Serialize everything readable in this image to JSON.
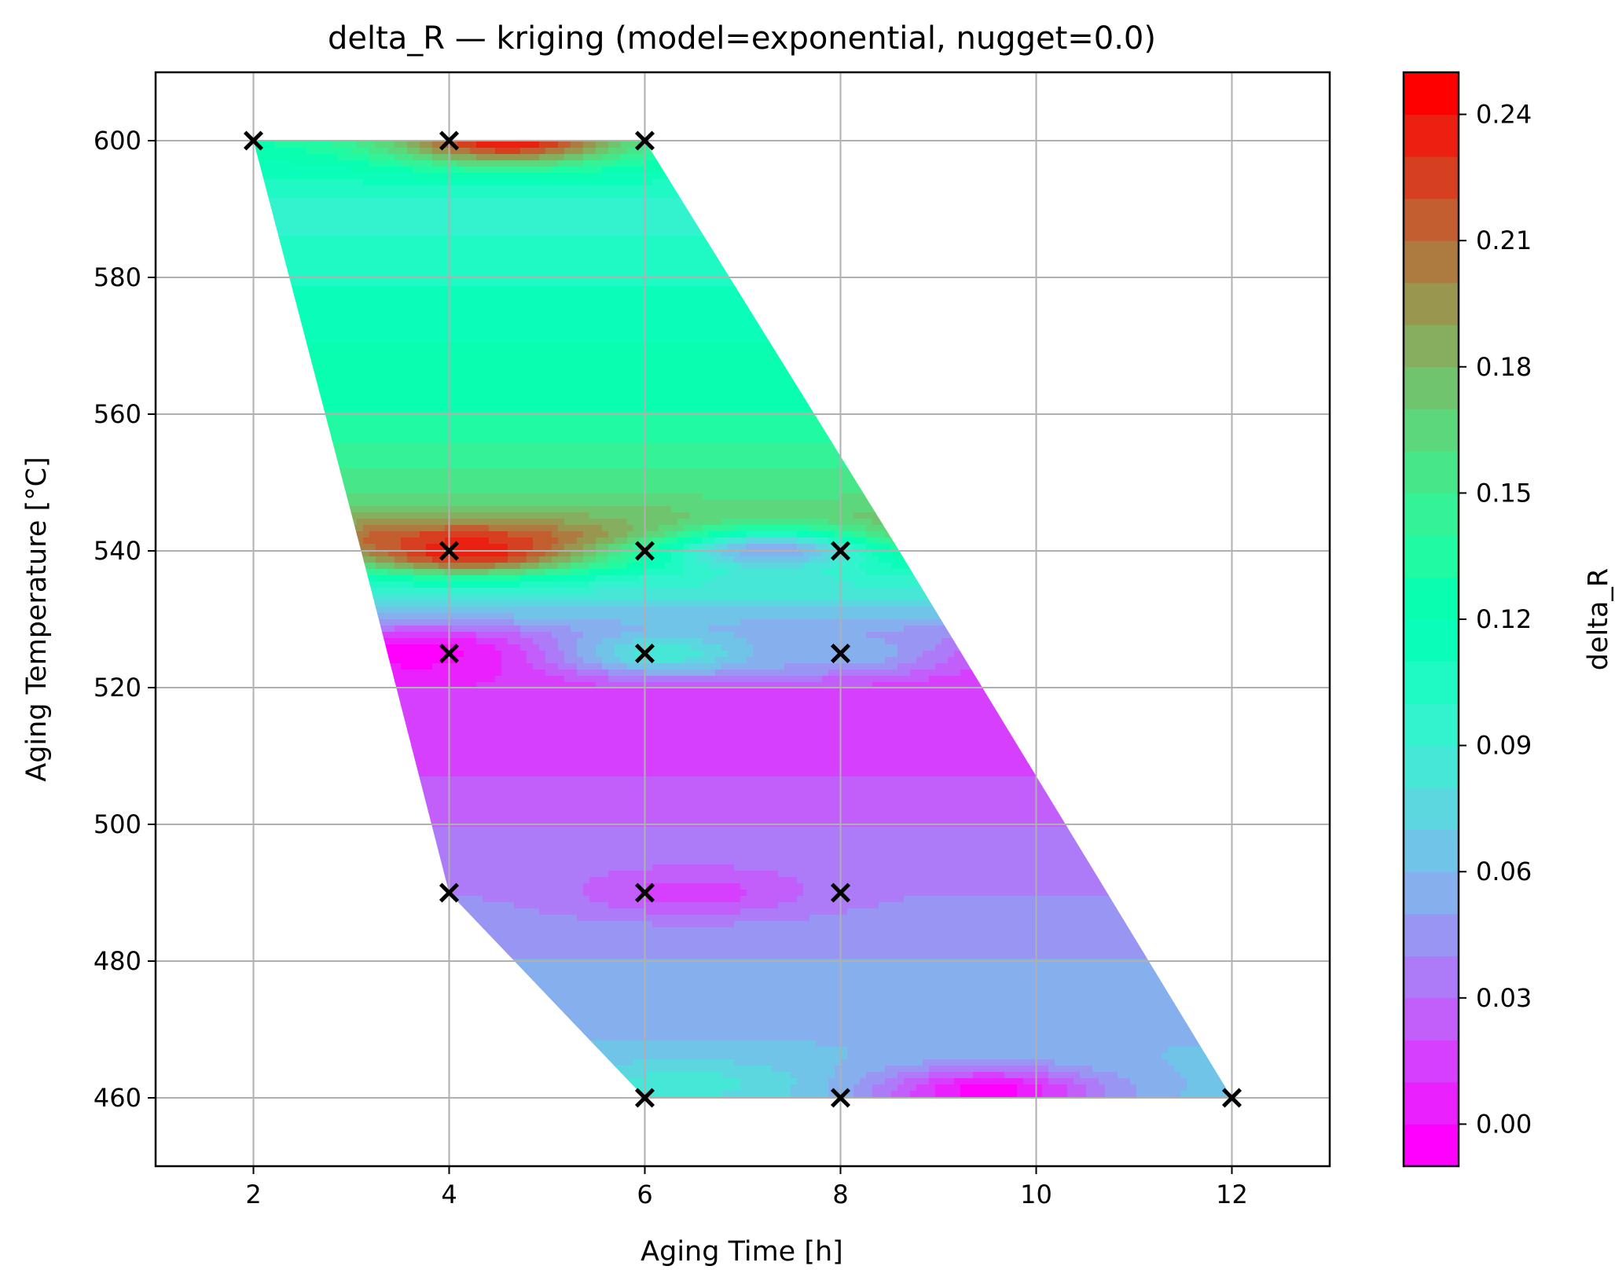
{
  "chart_data": {
    "type": "heatmap",
    "title": "delta_R — kriging (model=exponential, nugget=0.0)",
    "xlabel": "Aging Time [h]",
    "ylabel": "Aging Temperature [°C]",
    "xlim": [
      1,
      13
    ],
    "ylim": [
      450,
      610
    ],
    "x_ticks": [
      2,
      4,
      6,
      8,
      10,
      12
    ],
    "y_ticks": [
      460,
      480,
      500,
      520,
      540,
      560,
      580,
      600
    ],
    "grid": true,
    "colormap": "rainbow",
    "colorbar": {
      "label": "delta_R",
      "range": [
        -0.01,
        0.25
      ],
      "ticks": [
        0.0,
        0.03,
        0.06,
        0.09,
        0.12,
        0.15,
        0.18,
        0.21,
        0.24
      ],
      "tick_labels": [
        "0.00",
        "0.03",
        "0.06",
        "0.09",
        "0.12",
        "0.15",
        "0.18",
        "0.21",
        "0.24"
      ]
    },
    "sample_points": [
      {
        "x": 2,
        "y": 600
      },
      {
        "x": 4,
        "y": 600
      },
      {
        "x": 6,
        "y": 600
      },
      {
        "x": 4,
        "y": 540
      },
      {
        "x": 6,
        "y": 540
      },
      {
        "x": 8,
        "y": 540
      },
      {
        "x": 4,
        "y": 525
      },
      {
        "x": 6,
        "y": 525
      },
      {
        "x": 8,
        "y": 525
      },
      {
        "x": 4,
        "y": 490
      },
      {
        "x": 6,
        "y": 490
      },
      {
        "x": 8,
        "y": 490
      },
      {
        "x": 6,
        "y": 460
      },
      {
        "x": 8,
        "y": 460
      },
      {
        "x": 12,
        "y": 460
      }
    ],
    "field_bands": [
      {
        "temperature": 600,
        "delta_R": 0.13
      },
      {
        "temperature": 590,
        "delta_R": 0.095
      },
      {
        "temperature": 575,
        "delta_R": 0.115
      },
      {
        "temperature": 560,
        "delta_R": 0.13
      },
      {
        "temperature": 548,
        "delta_R": 0.16
      },
      {
        "temperature": 542,
        "delta_R": 0.2
      },
      {
        "temperature": 536,
        "delta_R": 0.1
      },
      {
        "temperature": 530,
        "delta_R": 0.06
      },
      {
        "temperature": 525,
        "delta_R": 0.01
      },
      {
        "temperature": 510,
        "delta_R": 0.015
      },
      {
        "temperature": 500,
        "delta_R": 0.03
      },
      {
        "temperature": 490,
        "delta_R": 0.04
      },
      {
        "temperature": 475,
        "delta_R": 0.055
      },
      {
        "temperature": 460,
        "delta_R": 0.065
      }
    ],
    "local_features": [
      {
        "x": 4.6,
        "y": 600,
        "delta_R": 0.24
      },
      {
        "x": 4.2,
        "y": 540,
        "delta_R": 0.24
      },
      {
        "x": 3.8,
        "y": 525,
        "delta_R": -0.005
      },
      {
        "x": 6.3,
        "y": 525,
        "delta_R": 0.09
      },
      {
        "x": 8.0,
        "y": 525,
        "delta_R": 0.06
      },
      {
        "x": 6.5,
        "y": 490,
        "delta_R": 0.015
      },
      {
        "x": 9.5,
        "y": 461,
        "delta_R": -0.005
      },
      {
        "x": 6.4,
        "y": 462,
        "delta_R": 0.085
      },
      {
        "x": 7.3,
        "y": 540,
        "delta_R": 0.05
      }
    ],
    "domain": {
      "left_edge": [
        [
          2,
          600
        ],
        [
          3.1,
          540
        ],
        [
          4,
          490
        ],
        [
          6,
          460
        ]
      ],
      "right_edge": [
        [
          6,
          600
        ],
        [
          8.6,
          540
        ],
        [
          12,
          460
        ]
      ]
    }
  }
}
